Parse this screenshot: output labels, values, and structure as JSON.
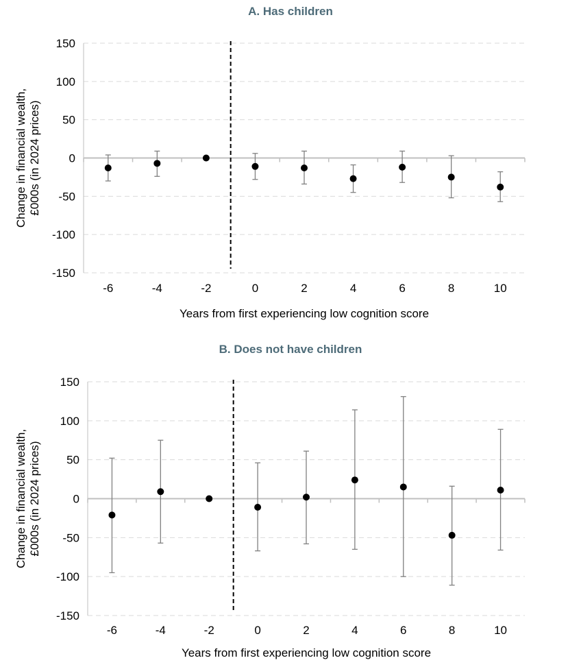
{
  "chart_data": [
    {
      "type": "scatter",
      "title": "A. Has children",
      "xlabel": "Years from first experiencing low cognition score",
      "ylabel_lines": [
        "Change in financial wealth,",
        "£000s (in 2024 prices)"
      ],
      "ylim": [
        -150,
        150
      ],
      "yticks": [
        150,
        100,
        50,
        0,
        -50,
        -100,
        -150
      ],
      "xlim": [
        -7,
        11
      ],
      "xticks": [
        -6,
        -4,
        -2,
        0,
        2,
        4,
        6,
        8,
        10
      ],
      "grid": "horizontal dashed",
      "reference_line_x": -1,
      "points": [
        {
          "x": -6,
          "y": -13,
          "lo": -30,
          "hi": 4
        },
        {
          "x": -4,
          "y": -7,
          "lo": -24,
          "hi": 9
        },
        {
          "x": -2,
          "y": 0,
          "lo": 0,
          "hi": 0
        },
        {
          "x": 0,
          "y": -11,
          "lo": -28,
          "hi": 6
        },
        {
          "x": 2,
          "y": -13,
          "lo": -34,
          "hi": 9
        },
        {
          "x": 4,
          "y": -27,
          "lo": -45,
          "hi": -9
        },
        {
          "x": 6,
          "y": -12,
          "lo": -32,
          "hi": 9
        },
        {
          "x": 8,
          "y": -25,
          "lo": -52,
          "hi": 3
        },
        {
          "x": 10,
          "y": -38,
          "lo": -57,
          "hi": -18
        }
      ]
    },
    {
      "type": "scatter",
      "title": "B. Does not have children",
      "xlabel": "Years from first experiencing low cognition score",
      "ylabel_lines": [
        "Change in financial wealth,",
        "£000s (in 2024 prices)"
      ],
      "ylim": [
        -150,
        150
      ],
      "yticks": [
        150,
        100,
        50,
        0,
        -50,
        -100,
        -150
      ],
      "xlim": [
        -7,
        11
      ],
      "xticks": [
        -6,
        -4,
        -2,
        0,
        2,
        4,
        6,
        8,
        10
      ],
      "grid": "horizontal dashed",
      "reference_line_x": -1,
      "points": [
        {
          "x": -6,
          "y": -21,
          "lo": -95,
          "hi": 52
        },
        {
          "x": -4,
          "y": 9,
          "lo": -57,
          "hi": 75
        },
        {
          "x": -2,
          "y": 0,
          "lo": 0,
          "hi": 0
        },
        {
          "x": 0,
          "y": -11,
          "lo": -67,
          "hi": 46
        },
        {
          "x": 2,
          "y": 2,
          "lo": -58,
          "hi": 61
        },
        {
          "x": 4,
          "y": 24,
          "lo": -65,
          "hi": 114
        },
        {
          "x": 6,
          "y": 15,
          "lo": -100,
          "hi": 131
        },
        {
          "x": 8,
          "y": -47,
          "lo": -111,
          "hi": 16
        },
        {
          "x": 10,
          "y": 11,
          "lo": -66,
          "hi": 89
        }
      ]
    }
  ]
}
